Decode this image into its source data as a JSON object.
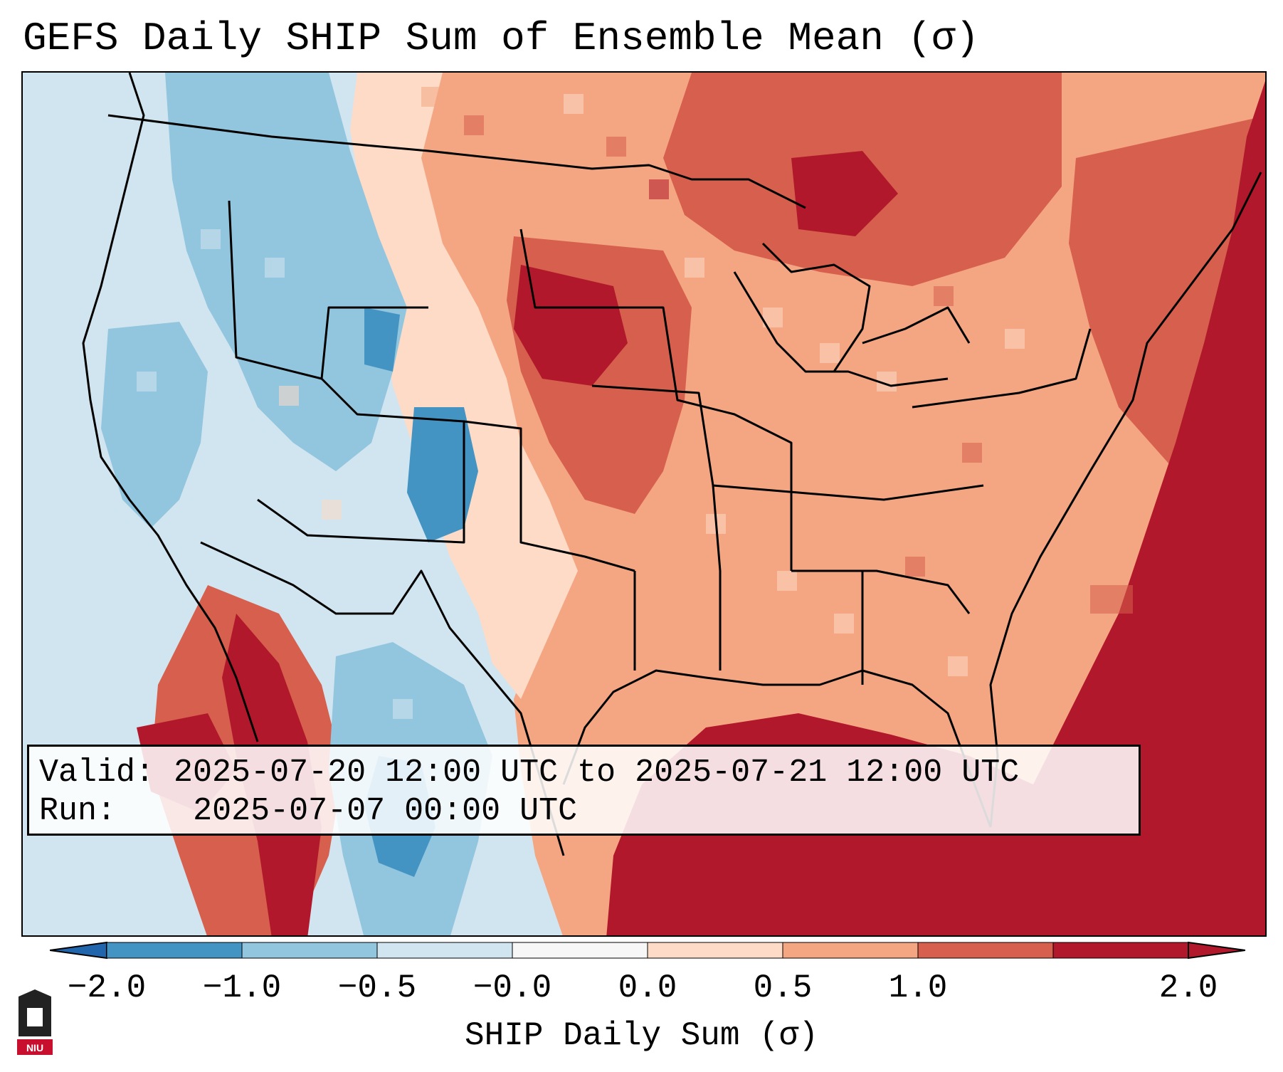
{
  "title": "GEFS Daily SHIP Sum of Ensemble Mean (σ)",
  "info": {
    "valid_label": "Valid:",
    "valid_value": "2025-07-20 12:00 UTC to 2025-07-21 12:00 UTC",
    "run_label": "Run:",
    "run_value": "2025-07-07 00:00 UTC"
  },
  "colorbar": {
    "label": "SHIP Daily Sum (σ)",
    "ticks": [
      "−2.0",
      "−1.0",
      "−0.5",
      "−0.0",
      "0.0",
      "0.5",
      "1.0",
      "2.0"
    ],
    "colors": [
      "#4393c3",
      "#92c5de",
      "#d1e5f0",
      "#f7f7f7",
      "#fddbc7",
      "#f4a582",
      "#d6604d",
      "#b2182b"
    ],
    "extend_low_color": "#2166ac",
    "extend_high_color": "#b2182b"
  },
  "logo": {
    "text": "NIU",
    "colors": {
      "tower": "#222222",
      "badge": "#c8102e"
    }
  }
}
